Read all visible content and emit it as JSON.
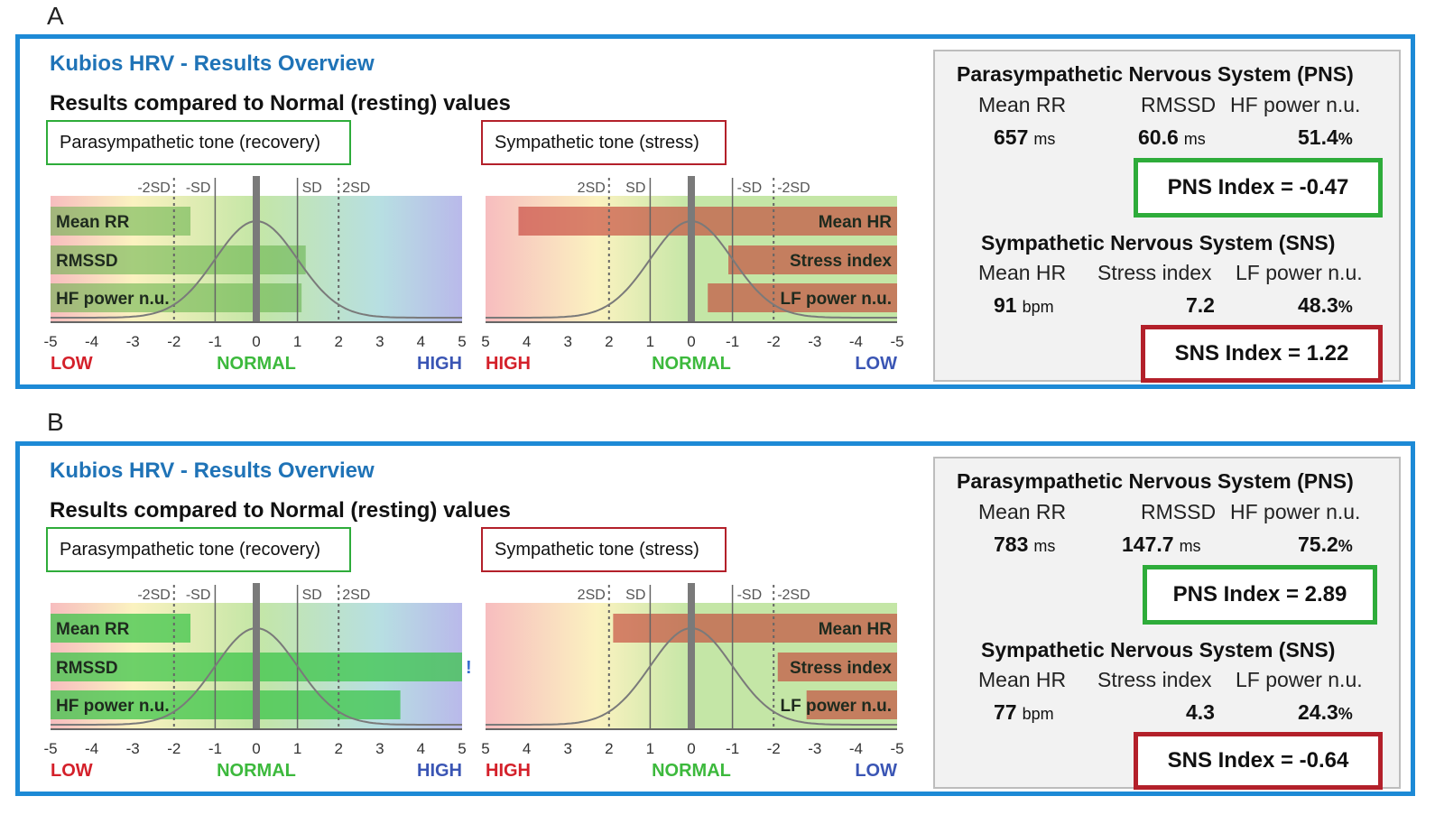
{
  "panels": [
    {
      "letter": "A",
      "app_title": "Kubios HRV - Results Overview",
      "subtitle": "Results compared to Normal (resting) values",
      "pns_tone_label": "Parasympathetic tone (recovery)",
      "sns_tone_label": "Sympathetic tone (stress)",
      "pns_chart": {
        "sd_labels": [
          "-2SD",
          "-SD",
          "SD",
          "2SD"
        ],
        "bars": [
          {
            "label": "Mean RR",
            "value": -1.6
          },
          {
            "label": "RMSSD",
            "value": 1.2
          },
          {
            "label": "HF power n.u.",
            "value": 1.1
          }
        ],
        "ticks": [
          "-5",
          "-4",
          "-3",
          "-2",
          "-1",
          "0",
          "1",
          "2",
          "3",
          "4",
          "5"
        ],
        "low": "LOW",
        "normal": "NORMAL",
        "high": "HIGH",
        "overflow_mark": ""
      },
      "sns_chart": {
        "sd_labels": [
          "2SD",
          "SD",
          "-SD",
          "-2SD"
        ],
        "bars": [
          {
            "label": "Mean HR",
            "value": 4.2
          },
          {
            "label": "Stress index",
            "value": -0.9
          },
          {
            "label": "LF power n.u.",
            "value": -0.4
          }
        ],
        "ticks": [
          "5",
          "4",
          "3",
          "2",
          "1",
          "0",
          "-1",
          "-2",
          "-3",
          "-4",
          "-5"
        ],
        "high": "HIGH",
        "normal": "NORMAL",
        "low": "LOW"
      },
      "pns": {
        "title": "Parasympathetic Nervous System (PNS)",
        "col1": "Mean RR",
        "col2": "RMSSD",
        "col3": "HF power n.u.",
        "val1": "657",
        "unit1": "ms",
        "val2": "60.6",
        "unit2": "ms",
        "val3": "51.4",
        "unit3": "%",
        "index": "PNS Index = -0.47"
      },
      "sns": {
        "title": "Sympathetic Nervous System (SNS)",
        "col1": "Mean HR",
        "col2": "Stress index",
        "col3": "LF power n.u.",
        "val1": "91",
        "unit1": "bpm",
        "val2": "7.2",
        "val3": "48.3",
        "unit3": "%",
        "index": "SNS Index = 1.22"
      }
    },
    {
      "letter": "B",
      "app_title": "Kubios HRV - Results Overview",
      "subtitle": "Results compared to Normal (resting) values",
      "pns_tone_label": "Parasympathetic tone (recovery)",
      "sns_tone_label": "Sympathetic tone (stress)",
      "pns_chart": {
        "sd_labels": [
          "-2SD",
          "-SD",
          "SD",
          "2SD"
        ],
        "bars": [
          {
            "label": "Mean RR",
            "value": -1.6
          },
          {
            "label": "RMSSD",
            "value": 5
          },
          {
            "label": "HF power n.u.",
            "value": 3.5
          }
        ],
        "ticks": [
          "-5",
          "-4",
          "-3",
          "-2",
          "-1",
          "0",
          "1",
          "2",
          "3",
          "4",
          "5"
        ],
        "low": "LOW",
        "normal": "NORMAL",
        "high": "HIGH",
        "overflow_mark": "!"
      },
      "sns_chart": {
        "sd_labels": [
          "2SD",
          "SD",
          "-SD",
          "-2SD"
        ],
        "bars": [
          {
            "label": "Mean HR",
            "value": 1.9
          },
          {
            "label": "Stress index",
            "value": -2.1
          },
          {
            "label": "LF power n.u.",
            "value": -2.8
          }
        ],
        "ticks": [
          "5",
          "4",
          "3",
          "2",
          "1",
          "0",
          "-1",
          "-2",
          "-3",
          "-4",
          "-5"
        ],
        "high": "HIGH",
        "normal": "NORMAL",
        "low": "LOW"
      },
      "pns": {
        "title": "Parasympathetic Nervous System (PNS)",
        "col1": "Mean RR",
        "col2": "RMSSD",
        "col3": "HF power n.u.",
        "val1": "783",
        "unit1": "ms",
        "val2": "147.7",
        "unit2": "ms",
        "val3": "75.2",
        "unit3": "%",
        "index": "PNS Index = 2.89"
      },
      "sns": {
        "title": "Sympathetic Nervous System (SNS)",
        "col1": "Mean HR",
        "col2": "Stress index",
        "col3": "LF power n.u.",
        "val1": "77",
        "unit1": "bpm",
        "val2": "4.3",
        "val3": "24.3",
        "unit3": "%",
        "index": "SNS Index = -0.64"
      }
    }
  ],
  "colors": {
    "panel_border": "#1d8ad6",
    "title_blue": "#1f73b7",
    "pns_green": "#2eac3a",
    "sns_red": "#b3202a",
    "label_low_red": "#d4202a",
    "label_normal_green": "#3cb93c",
    "label_high_blue": "#3a55b4"
  }
}
